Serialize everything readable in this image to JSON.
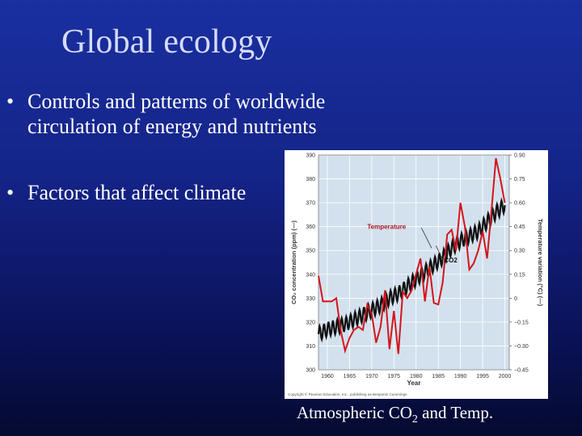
{
  "slide": {
    "title": "Global ecology",
    "bullets": [
      {
        "marker": "•",
        "text": "Controls and patterns of worldwide circulation of energy and nutrients"
      },
      {
        "marker": "•",
        "text": "Factors that affect climate"
      }
    ],
    "caption": {
      "prefix": "Atmospheric CO",
      "sub": "2",
      "suffix": " and Temp."
    }
  },
  "colors": {
    "co2_series": "#111111",
    "temp_series": "#d4141c",
    "plot_bg": "#d3e1ee"
  },
  "chart_data": {
    "type": "line",
    "xlabel": "Year",
    "y_left_label": "CO₂ concentration (ppm) (—)",
    "y_right_label": "Temperature variation (°C) (—)",
    "xlim": [
      1958,
      2001
    ],
    "ylim_left": [
      300,
      390
    ],
    "ylim_right": [
      -0.45,
      0.9
    ],
    "x_ticks": [
      1960,
      1965,
      1970,
      1975,
      1980,
      1985,
      1990,
      1995,
      2000
    ],
    "y_left_ticks": [
      300,
      310,
      320,
      330,
      340,
      350,
      360,
      370,
      380,
      390
    ],
    "y_right_ticks": [
      "−0.45",
      "−0.30",
      "−0.15",
      "0",
      "0.15",
      "0.30",
      "0.45",
      "0.60",
      "0.75",
      "0.90"
    ],
    "y_right_tick_values": [
      -0.45,
      -0.3,
      -0.15,
      0,
      0.15,
      0.3,
      0.45,
      0.6,
      0.75,
      0.9
    ],
    "annotations": [
      {
        "text": "Temperature",
        "series": "Temperature"
      },
      {
        "text": "CO2",
        "series": "CO2"
      }
    ],
    "copyright": "Copyright © Pearson Education, Inc., publishing as Benjamin Cummings",
    "series": [
      {
        "name": "CO2",
        "axis": "left",
        "x": [
          1958,
          1960,
          1962,
          1964,
          1966,
          1968,
          1970,
          1972,
          1974,
          1976,
          1978,
          1980,
          1982,
          1984,
          1986,
          1988,
          1990,
          1992,
          1994,
          1996,
          1998,
          2000
        ],
        "values": [
          315,
          317,
          318,
          319,
          321,
          323,
          325,
          327,
          330,
          332,
          335,
          338,
          341,
          344,
          347,
          351,
          354,
          356,
          358,
          362,
          366,
          369
        ],
        "seasonal_amplitude": 3
      },
      {
        "name": "Temperature",
        "axis": "right",
        "x": [
          1958,
          1959,
          1960,
          1961,
          1962,
          1963,
          1964,
          1965,
          1966,
          1967,
          1968,
          1969,
          1970,
          1971,
          1972,
          1973,
          1974,
          1975,
          1976,
          1977,
          1978,
          1979,
          1980,
          1981,
          1982,
          1983,
          1984,
          1985,
          1986,
          1987,
          1988,
          1989,
          1990,
          1991,
          1992,
          1993,
          1994,
          1995,
          1996,
          1997,
          1998,
          1999,
          2000
        ],
        "values": [
          0.14,
          -0.02,
          -0.02,
          -0.02,
          0.0,
          -0.2,
          -0.33,
          -0.25,
          -0.2,
          -0.18,
          -0.2,
          -0.04,
          -0.1,
          -0.28,
          -0.18,
          0.05,
          -0.32,
          -0.08,
          -0.35,
          0.04,
          0.0,
          0.05,
          0.15,
          0.25,
          -0.02,
          0.2,
          -0.03,
          -0.04,
          0.1,
          0.4,
          0.43,
          0.3,
          0.6,
          0.45,
          0.18,
          0.22,
          0.3,
          0.42,
          0.25,
          0.55,
          0.88,
          0.75,
          0.6
        ]
      }
    ]
  }
}
